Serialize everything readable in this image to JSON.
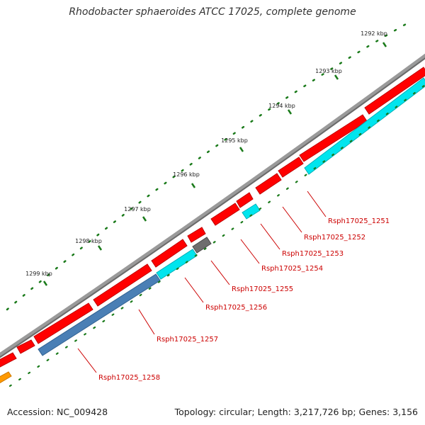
{
  "map": {
    "title": "Rhodobacter sphaeroides ATCC 17025, complete genome",
    "accession_text": "Accession: NC_009428",
    "summary_text": "Topology: circular; Length: 3,217,726 bp; Genes: 3,156"
  },
  "ruler": {
    "ticks": [
      {
        "label": "1292 kbp",
        "kbp": 1292
      },
      {
        "label": "1293 kbp",
        "kbp": 1293
      },
      {
        "label": "1294 kbp",
        "kbp": 1294
      },
      {
        "label": "1295 kbp",
        "kbp": 1295
      },
      {
        "label": "1296 kbp",
        "kbp": 1296
      },
      {
        "label": "1297 kbp",
        "kbp": 1297
      },
      {
        "label": "1298 kbp",
        "kbp": 1298
      },
      {
        "label": "1299 kbp",
        "kbp": 1299
      }
    ]
  },
  "colors": {
    "backbone": "#7a7a7a",
    "cds": "#ff0000",
    "gene_light": "#00e5ee",
    "gene_steel": "#4a7fb5",
    "gene_gray": "#6e6e6e",
    "gene_orange": "#ff9900",
    "tick": "#1a7a1a",
    "label": "#cc0000"
  },
  "features": {
    "labels": [
      "Rsph17025_1251",
      "Rsph17025_1252",
      "Rsph17025_1253",
      "Rsph17025_1254",
      "Rsph17025_1255",
      "Rsph17025_1256",
      "Rsph17025_1257",
      "Rsph17025_1258"
    ]
  }
}
